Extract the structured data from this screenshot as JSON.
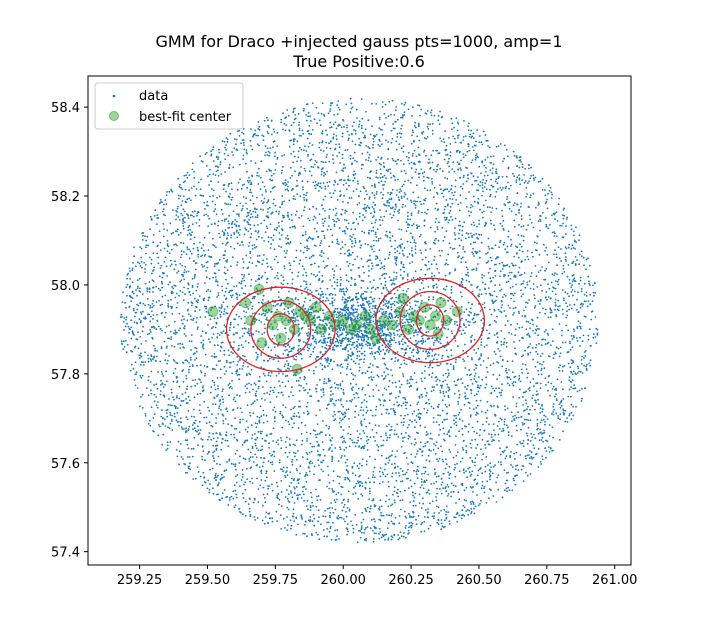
{
  "chart_data": {
    "type": "scatter",
    "title": "GMM for Draco +injected gauss pts=1000, amp=1",
    "subtitle": "True Positive:0.6",
    "xlabel": "",
    "ylabel": "",
    "xlim": [
      259.06,
      261.06
    ],
    "ylim": [
      57.37,
      58.47
    ],
    "xticks": [
      259.25,
      259.5,
      259.75,
      260.0,
      260.25,
      260.5,
      260.75,
      261.0
    ],
    "xtick_labels": [
      "259.25",
      "259.50",
      "259.75",
      "260.00",
      "260.25",
      "260.50",
      "260.75",
      "261.00"
    ],
    "yticks": [
      57.4,
      57.6,
      57.8,
      58.0,
      58.2,
      58.4
    ],
    "ytick_labels": [
      "57.4",
      "57.6",
      "57.8",
      "58.0",
      "58.2",
      "58.4"
    ],
    "grid": false,
    "legend_position": "upper-left",
    "series": [
      {
        "name": "data",
        "color": "#1f77b4",
        "marker": "point",
        "field": {
          "center": [
            260.06,
            57.92
          ],
          "x_half_range": 0.88,
          "y_half_range": 0.5
        },
        "overdensity": {
          "center": [
            260.05,
            57.91
          ],
          "x_sigma": 0.14,
          "y_sigma": 0.04
        }
      },
      {
        "name": "best-fit center",
        "color": "#2ca02c",
        "marker": "circle",
        "alpha": 0.45,
        "points": [
          [
            259.52,
            57.94
          ],
          [
            259.64,
            57.96
          ],
          [
            259.66,
            57.92
          ],
          [
            259.69,
            57.99
          ],
          [
            259.72,
            57.95
          ],
          [
            259.74,
            57.91
          ],
          [
            259.76,
            57.93
          ],
          [
            259.77,
            57.88
          ],
          [
            259.79,
            57.92
          ],
          [
            259.8,
            57.96
          ],
          [
            259.82,
            57.9
          ],
          [
            259.84,
            57.94
          ],
          [
            259.86,
            57.93
          ],
          [
            259.88,
            57.92
          ],
          [
            259.9,
            57.95
          ],
          [
            259.92,
            57.9
          ],
          [
            259.95,
            57.93
          ],
          [
            259.97,
            57.91
          ],
          [
            260.0,
            57.92
          ],
          [
            260.03,
            57.9
          ],
          [
            260.05,
            57.91
          ],
          [
            260.08,
            57.93
          ],
          [
            260.1,
            57.9
          ],
          [
            260.12,
            57.88
          ],
          [
            260.15,
            57.92
          ],
          [
            260.18,
            57.91
          ],
          [
            260.21,
            57.94
          ],
          [
            260.24,
            57.9
          ],
          [
            260.26,
            57.93
          ],
          [
            260.28,
            57.92
          ],
          [
            260.3,
            57.95
          ],
          [
            260.32,
            57.91
          ],
          [
            260.34,
            57.93
          ],
          [
            260.36,
            57.96
          ],
          [
            260.38,
            57.92
          ],
          [
            260.42,
            57.94
          ],
          [
            259.7,
            57.87
          ],
          [
            259.83,
            57.81
          ],
          [
            260.22,
            57.97
          ],
          [
            260.35,
            57.89
          ]
        ]
      }
    ],
    "gmm_components": [
      {
        "center": [
          259.77,
          57.9
        ],
        "color": "#d62728",
        "sigma_levels": [
          {
            "rx": 0.05,
            "ry": 0.035
          },
          {
            "rx": 0.11,
            "ry": 0.065
          },
          {
            "rx": 0.2,
            "ry": 0.095
          }
        ]
      },
      {
        "center": [
          260.32,
          57.92
        ],
        "color": "#d62728",
        "sigma_levels": [
          {
            "rx": 0.05,
            "ry": 0.035
          },
          {
            "rx": 0.11,
            "ry": 0.065
          },
          {
            "rx": 0.2,
            "ry": 0.095
          }
        ]
      }
    ]
  },
  "legend": {
    "items": [
      {
        "label": "data"
      },
      {
        "label": "best-fit center"
      }
    ]
  }
}
